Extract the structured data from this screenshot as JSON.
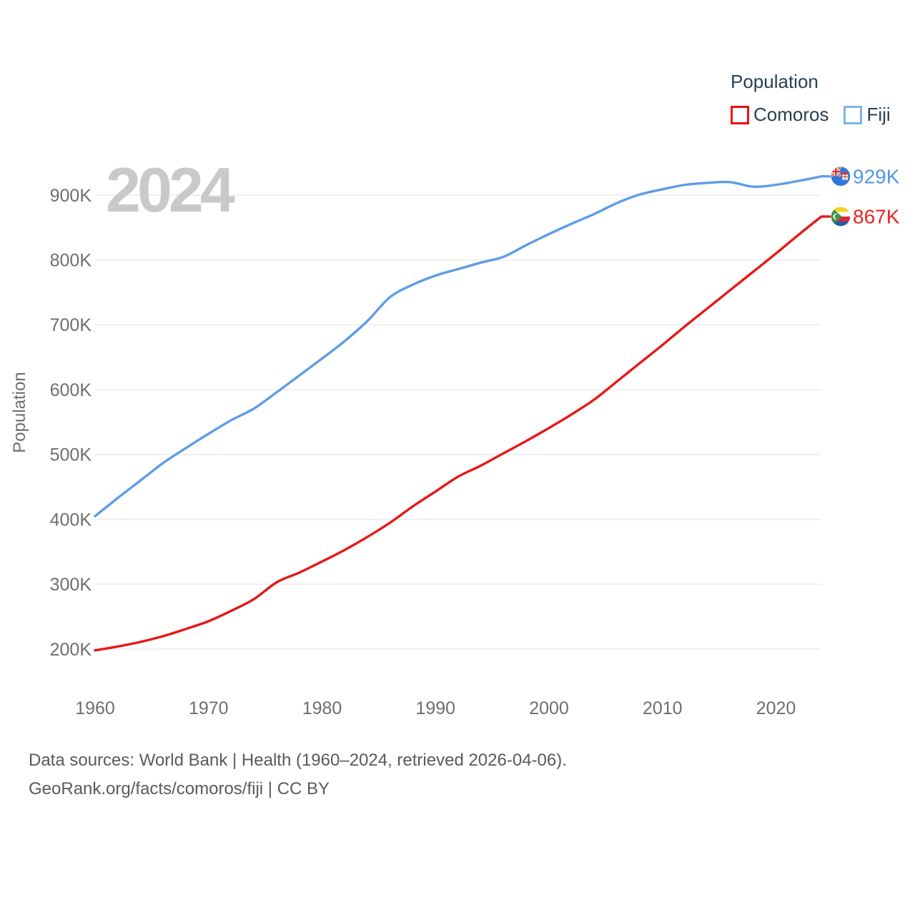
{
  "watermark": "2024",
  "legend": {
    "title": "Population",
    "items": [
      {
        "label": "Comoros",
        "swatch_color": "#ee1111"
      },
      {
        "label": "Fiji",
        "swatch_color": "#7fb5ea"
      }
    ]
  },
  "chart_data": {
    "type": "line",
    "title": "Population",
    "ylabel": "Population",
    "xlabel": "",
    "grid": "horizontal",
    "legend_position": "top-right",
    "xlim": [
      1960,
      2024
    ],
    "ylim": [
      200000,
      940000
    ],
    "x_ticks": [
      {
        "value": 1960,
        "label": "1960"
      },
      {
        "value": 1970,
        "label": "1970"
      },
      {
        "value": 1980,
        "label": "1980"
      },
      {
        "value": 1990,
        "label": "1990"
      },
      {
        "value": 2000,
        "label": "2000"
      },
      {
        "value": 2010,
        "label": "2010"
      },
      {
        "value": 2020,
        "label": "2020"
      }
    ],
    "y_ticks": [
      {
        "value": 200,
        "label": "200K"
      },
      {
        "value": 300,
        "label": "300K"
      },
      {
        "value": 400,
        "label": "400K"
      },
      {
        "value": 500,
        "label": "500K"
      },
      {
        "value": 600,
        "label": "600K"
      },
      {
        "value": 700,
        "label": "700K"
      },
      {
        "value": 800,
        "label": "800K"
      },
      {
        "value": 900,
        "label": "900K"
      }
    ],
    "x_years": [
      1960,
      1962,
      1964,
      1966,
      1968,
      1970,
      1972,
      1974,
      1976,
      1978,
      1980,
      1982,
      1984,
      1986,
      1988,
      1990,
      1992,
      1994,
      1996,
      1998,
      2000,
      2002,
      2004,
      2006,
      2008,
      2010,
      2012,
      2014,
      2016,
      2018,
      2020,
      2022,
      2024
    ],
    "series": [
      {
        "name": "Fiji",
        "line_color": "#5e9ce6",
        "label_color": "#4f97e8",
        "end_label": "929K",
        "flag": "fiji",
        "values_k": [
          405,
          433,
          460,
          487,
          510,
          532,
          553,
          571,
          596,
          622,
          648,
          675,
          706,
          743,
          762,
          776,
          786,
          796,
          805,
          823,
          840,
          856,
          871,
          888,
          901,
          909,
          916,
          919,
          920,
          913,
          916,
          922,
          929
        ]
      },
      {
        "name": "Comoros",
        "line_color": "#e81717",
        "label_color": "#ee2222",
        "end_label": "867K",
        "flag": "comoros",
        "values_k": [
          198,
          204,
          211,
          220,
          231,
          243,
          259,
          277,
          303,
          318,
          335,
          353,
          373,
          395,
          420,
          443,
          466,
          483,
          502,
          521,
          541,
          562,
          585,
          613,
          641,
          669,
          698,
          726,
          754,
          782,
          810,
          839,
          867
        ]
      }
    ]
  },
  "footer": {
    "line1": "Data sources: World Bank | Health (1960–2024, retrieved 2026-04-06).",
    "line2": "GeoRank.org/facts/comoros/fiji | CC BY"
  }
}
